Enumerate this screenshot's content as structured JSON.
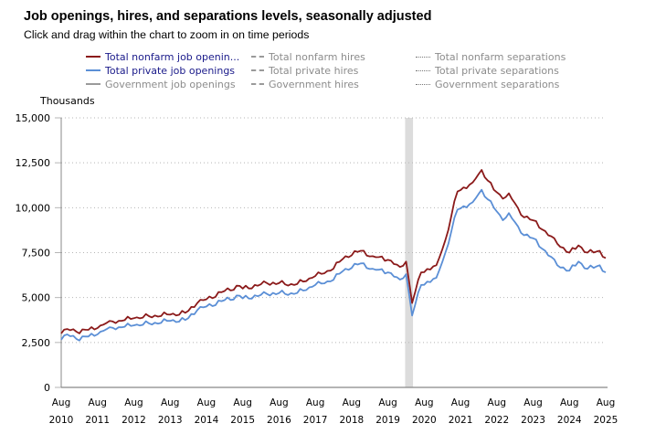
{
  "title": "Job openings, hires, and separations levels, seasonally adjusted",
  "subtitle": "Click and drag within the chart to zoom in on time periods",
  "legend": [
    {
      "label": "Total nonfarm job openin...",
      "style": "solid",
      "color": "#8b1a1a",
      "active": true
    },
    {
      "label": "Total private job openings",
      "style": "solid",
      "color": "#5b8fd6",
      "active": true
    },
    {
      "label": "Government job openings",
      "style": "solid",
      "color": "#9a9a9a",
      "active": false
    },
    {
      "label": "Total nonfarm hires",
      "style": "dash",
      "color": "#9a9a9a",
      "active": false
    },
    {
      "label": "Total private hires",
      "style": "dash",
      "color": "#9a9a9a",
      "active": false
    },
    {
      "label": "Government hires",
      "style": "dash",
      "color": "#9a9a9a",
      "active": false
    },
    {
      "label": "Total nonfarm separations",
      "style": "dot",
      "color": "#777777",
      "active": false
    },
    {
      "label": "Total private separations",
      "style": "dot",
      "color": "#777777",
      "active": false
    },
    {
      "label": "Government separations",
      "style": "dot",
      "color": "#777777",
      "active": false
    }
  ],
  "chart_data": {
    "type": "line",
    "title": "Job openings, hires, and separations levels, seasonally adjusted",
    "ylabel": "Thousands",
    "xlabel": "",
    "ylim": [
      0,
      15000
    ],
    "yticks": [
      0,
      2500,
      5000,
      7500,
      10000,
      12500,
      15000
    ],
    "ytick_labels": [
      "0",
      "2,500",
      "5,000",
      "7,500",
      "10,000",
      "12,500",
      "15,000"
    ],
    "xlim": [
      "2010-08",
      "2025-08"
    ],
    "xticks": [
      {
        "month": "Aug",
        "year": "2010"
      },
      {
        "month": "Aug",
        "year": "2011"
      },
      {
        "month": "Aug",
        "year": "2012"
      },
      {
        "month": "Aug",
        "year": "2013"
      },
      {
        "month": "Aug",
        "year": "2014"
      },
      {
        "month": "Aug",
        "year": "2015"
      },
      {
        "month": "Aug",
        "year": "2016"
      },
      {
        "month": "Aug",
        "year": "2017"
      },
      {
        "month": "Aug",
        "year": "2018"
      },
      {
        "month": "Aug",
        "year": "2019"
      },
      {
        "month": "Aug",
        "year": "2020"
      },
      {
        "month": "Aug",
        "year": "2021"
      },
      {
        "month": "Aug",
        "year": "2022"
      },
      {
        "month": "Aug",
        "year": "2023"
      },
      {
        "month": "Aug",
        "year": "2024"
      },
      {
        "month": "Aug",
        "year": "2025"
      }
    ],
    "grid": true,
    "recession_band": {
      "start": "2020-02",
      "end": "2020-04"
    },
    "series": [
      {
        "name": "Total nonfarm job openings",
        "color": "#8b1a1a",
        "points": [
          [
            "2010-08",
            3000
          ],
          [
            "2010-10",
            3250
          ],
          [
            "2011-01",
            3100
          ],
          [
            "2011-08",
            3300
          ],
          [
            "2011-12",
            3700
          ],
          [
            "2012-03",
            3700
          ],
          [
            "2012-08",
            3850
          ],
          [
            "2013-03",
            4000
          ],
          [
            "2013-08",
            4050
          ],
          [
            "2014-01",
            4150
          ],
          [
            "2014-05",
            4700
          ],
          [
            "2014-08",
            4900
          ],
          [
            "2015-01",
            5300
          ],
          [
            "2015-07",
            5650
          ],
          [
            "2015-08",
            5500
          ],
          [
            "2016-04",
            5800
          ],
          [
            "2016-08",
            5800
          ],
          [
            "2017-01",
            5700
          ],
          [
            "2017-07",
            6100
          ],
          [
            "2017-08",
            6200
          ],
          [
            "2018-01",
            6500
          ],
          [
            "2018-06",
            7300
          ],
          [
            "2018-11",
            7600
          ],
          [
            "2019-03",
            7300
          ],
          [
            "2019-08",
            7100
          ],
          [
            "2019-12",
            6700
          ],
          [
            "2020-02",
            7000
          ],
          [
            "2020-04",
            4700
          ],
          [
            "2020-07",
            6400
          ],
          [
            "2020-12",
            6800
          ],
          [
            "2021-03",
            8200
          ],
          [
            "2021-07",
            10900
          ],
          [
            "2021-12",
            11400
          ],
          [
            "2022-03",
            12100
          ],
          [
            "2022-07",
            11000
          ],
          [
            "2022-10",
            10500
          ],
          [
            "2022-12",
            10800
          ],
          [
            "2023-04",
            9600
          ],
          [
            "2023-08",
            9300
          ],
          [
            "2023-12",
            8700
          ],
          [
            "2024-04",
            8000
          ],
          [
            "2024-08",
            7500
          ],
          [
            "2024-11",
            7900
          ],
          [
            "2025-02",
            7500
          ],
          [
            "2025-06",
            7600
          ],
          [
            "2025-08",
            7200
          ]
        ]
      },
      {
        "name": "Total private job openings",
        "color": "#5b8fd6",
        "points": [
          [
            "2010-08",
            2650
          ],
          [
            "2010-10",
            2950
          ],
          [
            "2011-01",
            2700
          ],
          [
            "2011-08",
            2950
          ],
          [
            "2011-12",
            3350
          ],
          [
            "2012-03",
            3350
          ],
          [
            "2012-08",
            3450
          ],
          [
            "2013-03",
            3600
          ],
          [
            "2013-08",
            3700
          ],
          [
            "2014-01",
            3750
          ],
          [
            "2014-05",
            4300
          ],
          [
            "2014-08",
            4500
          ],
          [
            "2015-01",
            4800
          ],
          [
            "2015-07",
            5100
          ],
          [
            "2015-08",
            4950
          ],
          [
            "2016-04",
            5200
          ],
          [
            "2016-08",
            5250
          ],
          [
            "2017-01",
            5200
          ],
          [
            "2017-07",
            5600
          ],
          [
            "2017-08",
            5700
          ],
          [
            "2018-01",
            5900
          ],
          [
            "2018-06",
            6600
          ],
          [
            "2018-11",
            6900
          ],
          [
            "2019-03",
            6600
          ],
          [
            "2019-08",
            6400
          ],
          [
            "2019-12",
            6000
          ],
          [
            "2020-02",
            6300
          ],
          [
            "2020-04",
            4000
          ],
          [
            "2020-07",
            5700
          ],
          [
            "2020-12",
            6100
          ],
          [
            "2021-03",
            7500
          ],
          [
            "2021-07",
            9900
          ],
          [
            "2021-12",
            10300
          ],
          [
            "2022-03",
            11000
          ],
          [
            "2022-07",
            10000
          ],
          [
            "2022-10",
            9300
          ],
          [
            "2022-12",
            9700
          ],
          [
            "2023-04",
            8600
          ],
          [
            "2023-08",
            8300
          ],
          [
            "2023-12",
            7600
          ],
          [
            "2024-04",
            6800
          ],
          [
            "2024-08",
            6500
          ],
          [
            "2024-11",
            7000
          ],
          [
            "2025-02",
            6600
          ],
          [
            "2025-06",
            6800
          ],
          [
            "2025-08",
            6400
          ]
        ]
      }
    ]
  }
}
